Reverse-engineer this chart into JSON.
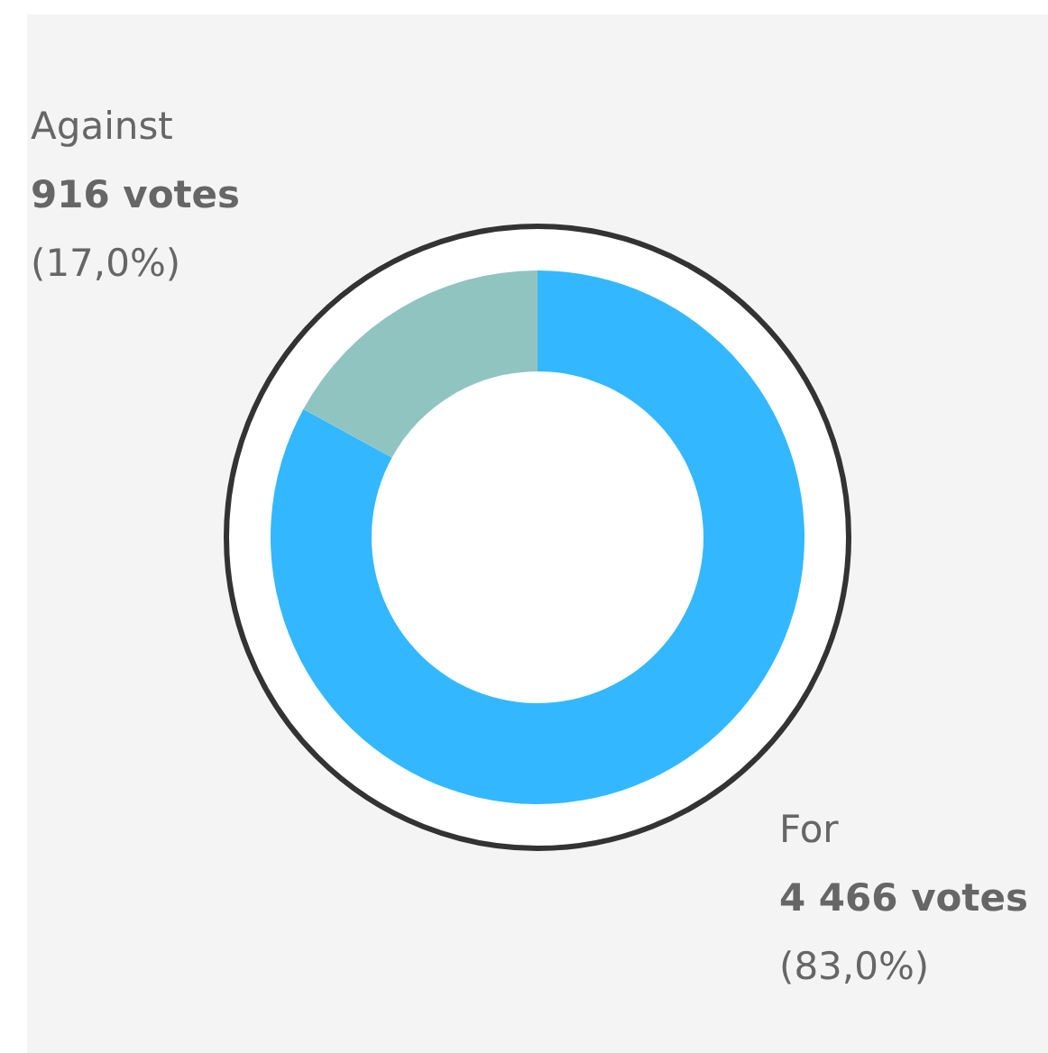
{
  "chart_data": {
    "type": "donut",
    "categories": [
      "For",
      "Against"
    ],
    "values": [
      4466,
      916
    ],
    "colors": [
      "#33b8ff",
      "#90c4c0"
    ],
    "value_labels": [
      "4 466 votes\n(83,0%)",
      "916 votes\n(17,0%)"
    ],
    "legend": false
  }
}
